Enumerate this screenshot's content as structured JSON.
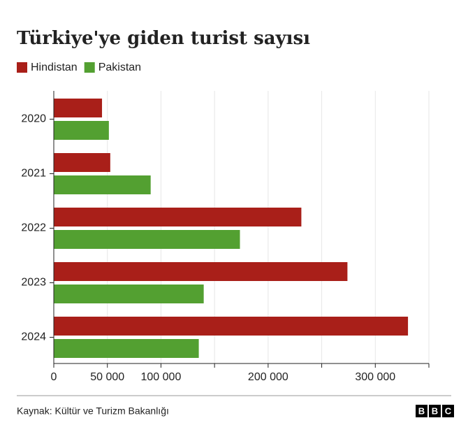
{
  "chart_data": {
    "type": "bar",
    "orientation": "horizontal",
    "title": "Türkiye'ye giden turist sayısı",
    "categories": [
      "2020",
      "2021",
      "2022",
      "2023",
      "2024"
    ],
    "series": [
      {
        "name": "Hindistan",
        "color": "#a91f19",
        "values": [
          45000,
          52700,
          231000,
          274000,
          330500
        ]
      },
      {
        "name": "Pakistan",
        "color": "#53a031",
        "values": [
          51400,
          90400,
          173700,
          139900,
          135300
        ]
      }
    ],
    "xlim": [
      0,
      350000
    ],
    "xticks": [
      0,
      {
        "value": 50000,
        "label": "50 000"
      },
      {
        "value": 100000,
        "label": "100 000"
      },
      {
        "value": 200000,
        "label": "200 000"
      },
      {
        "value": 300000,
        "label": "300 000"
      }
    ],
    "xticks_minor": [
      150000,
      250000,
      350000
    ],
    "grid": true,
    "source": "Kaynak: Kültür ve Turizm Bakanlığı"
  },
  "logo": [
    "B",
    "B",
    "C"
  ]
}
